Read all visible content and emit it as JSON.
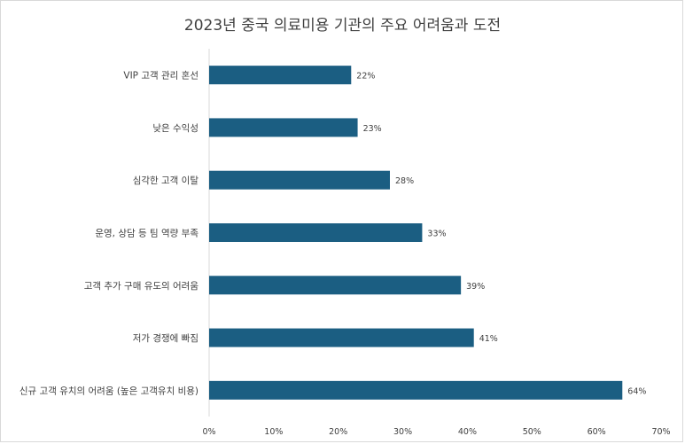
{
  "chart_data": {
    "type": "bar",
    "orientation": "horizontal",
    "title": "2023년 중국 의료미용 기관의 주요 어려움과 도전",
    "categories": [
      "VIP 고객 관리 혼선",
      "낮은 수익성",
      "심각한 고객 이탈",
      "운영, 상담 등 팀 역량 부족",
      "고객 추가 구매 유도의 어려움",
      "저가 경쟁에 빠짐",
      "신규 고객 유치의 어려움 (높은 고객유치 비용)"
    ],
    "values": [
      22,
      23,
      28,
      33,
      39,
      41,
      64
    ],
    "value_labels": [
      "22%",
      "23%",
      "28%",
      "33%",
      "39%",
      "41%",
      "64%"
    ],
    "xlim": [
      0,
      70
    ],
    "xticks": [
      "0%",
      "10%",
      "20%",
      "30%",
      "40%",
      "50%",
      "60%",
      "70%"
    ],
    "bar_color": "#1b5e82",
    "grid": false,
    "legend": "none"
  }
}
